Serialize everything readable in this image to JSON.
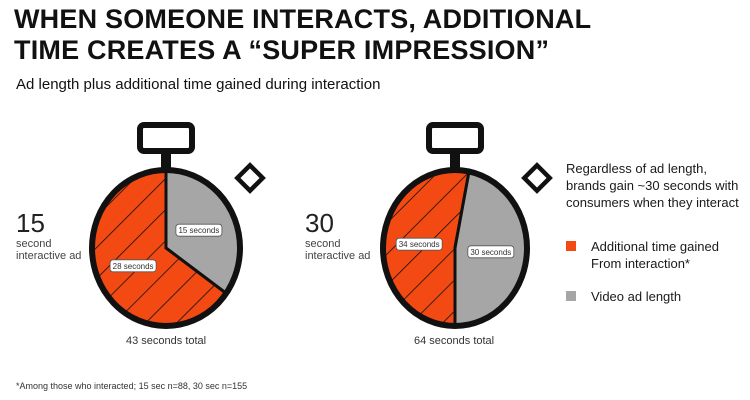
{
  "title_lines": [
    "WHEN SOMEONE INTERACTS, ADDITIONAL",
    "TIME CREATES A “SUPER IMPRESSION”"
  ],
  "subtitle": "Ad length plus additional time gained during interaction",
  "colors": {
    "interaction": "#f24a12",
    "video": "#a6a6a6",
    "outline": "#111111"
  },
  "chart_data": [
    {
      "type": "pie",
      "ad_number": "15",
      "ad_label_lines": [
        "second",
        "interactive ad"
      ],
      "total_label": "43 seconds total",
      "slices": [
        {
          "label": "15 seconds",
          "value": 15,
          "kind": "video"
        },
        {
          "label": "28 seconds",
          "value": 28,
          "kind": "interaction"
        }
      ]
    },
    {
      "type": "pie",
      "ad_number": "30",
      "ad_label_lines": [
        "second",
        "interactive ad"
      ],
      "total_label": "64 seconds total",
      "slices": [
        {
          "label": "34 seconds",
          "value": 34,
          "kind": "interaction"
        },
        {
          "label": "30 seconds",
          "value": 30,
          "kind": "video"
        }
      ]
    }
  ],
  "side_text_lines": [
    "Regardless of ad length,",
    "brands gain ~30 seconds with",
    "consumers when they interact"
  ],
  "legend": [
    {
      "label_lines": [
        "Additional time gained",
        "From interaction*"
      ],
      "kind": "interaction"
    },
    {
      "label_lines": [
        "Video ad length"
      ],
      "kind": "video"
    }
  ],
  "footnote": "*Among those who interacted; 15 sec n=88, 30 sec n=155"
}
